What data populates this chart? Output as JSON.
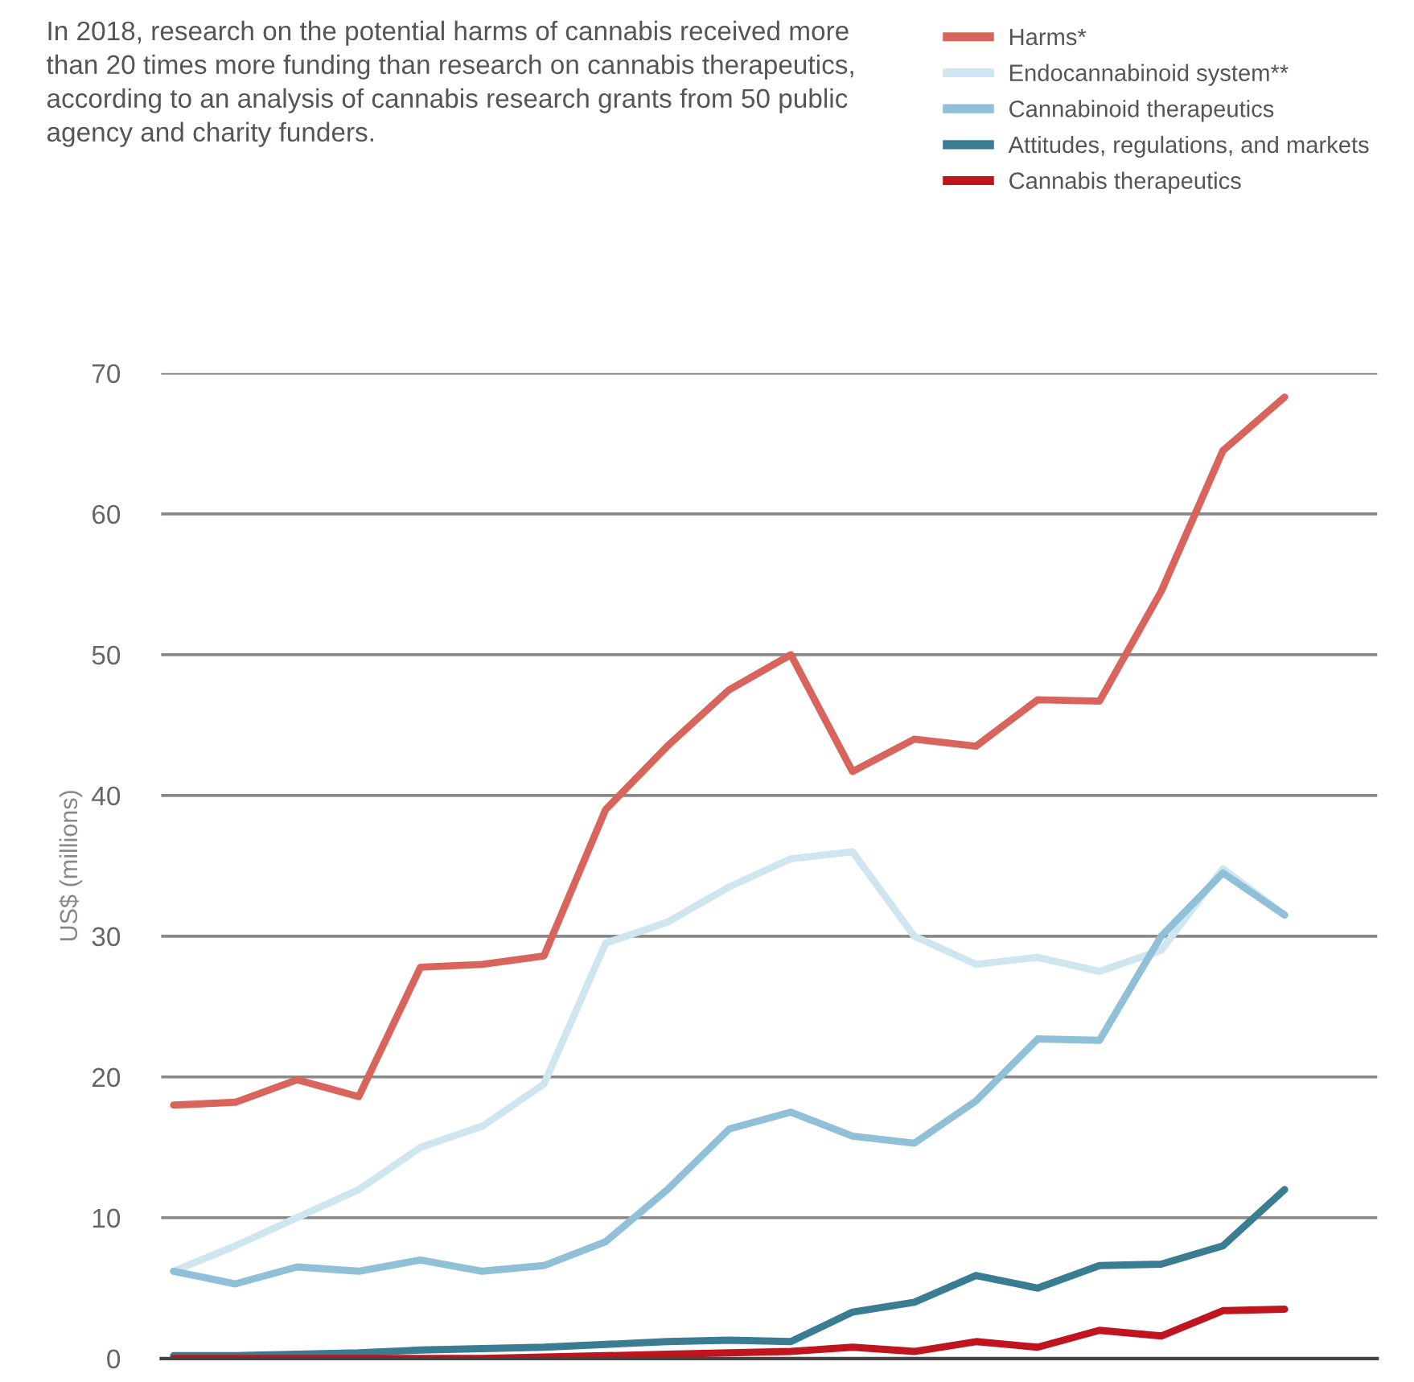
{
  "chart_data": {
    "type": "line",
    "subtitle": "In 2018, research on the potential harms of cannabis received more than 20 times more funding than research on cannabis therapeutics, according to an analysis of cannabis research grants from 50 public agency and charity funders.",
    "ylabel": "US$ (millions)",
    "categories": [
      null,
      null,
      null,
      null,
      null,
      null,
      null,
      null,
      null,
      null,
      null,
      null,
      null,
      null,
      null,
      null,
      null,
      null,
      null
    ],
    "series": [
      {
        "name": "Harms*",
        "color": "#d9645c",
        "values": [
          18,
          18.2,
          19.8,
          18.6,
          27.8,
          28,
          28.6,
          39,
          43.5,
          47.5,
          50,
          41.7,
          44,
          43.5,
          46.8,
          46.7,
          54.5,
          64.5,
          68.3
        ]
      },
      {
        "name": "Endocannabinoid system**",
        "color": "#cfe6f0",
        "values": [
          6.2,
          8,
          10,
          12,
          15,
          16.5,
          19.5,
          29.5,
          31,
          33.5,
          35.5,
          36,
          30,
          28,
          28.5,
          27.5,
          29,
          34.8,
          31.5
        ]
      },
      {
        "name": "Cannabinoid therapeutics",
        "color": "#8fc0d8",
        "values": [
          6.2,
          5.3,
          6.5,
          6.2,
          7,
          6.2,
          6.6,
          8.3,
          12,
          16.3,
          17.5,
          15.8,
          15.3,
          18.3,
          22.7,
          22.6,
          30,
          34.5,
          31.5
        ]
      },
      {
        "name": "Attitudes, regulations, and markets",
        "color": "#3a7c92",
        "values": [
          0.2,
          0.2,
          0.3,
          0.4,
          0.6,
          0.7,
          0.8,
          1,
          1.2,
          1.3,
          1.2,
          3.3,
          4,
          5.9,
          5,
          6.6,
          6.7,
          8,
          12
        ]
      },
      {
        "name": "Cannabis therapeutics",
        "color": "#c0151f",
        "values": [
          0,
          0,
          0,
          0,
          0,
          0,
          0.1,
          0.2,
          0.3,
          0.4,
          0.5,
          0.8,
          0.5,
          1.2,
          0.8,
          2,
          1.6,
          3.4,
          3.5
        ]
      }
    ],
    "ylim": [
      0,
      70
    ],
    "yticks": [
      0,
      10,
      20,
      30,
      40,
      50,
      60,
      70
    ],
    "grid": "y",
    "legend": "top right",
    "marker": "none",
    "line_style": "solid"
  }
}
